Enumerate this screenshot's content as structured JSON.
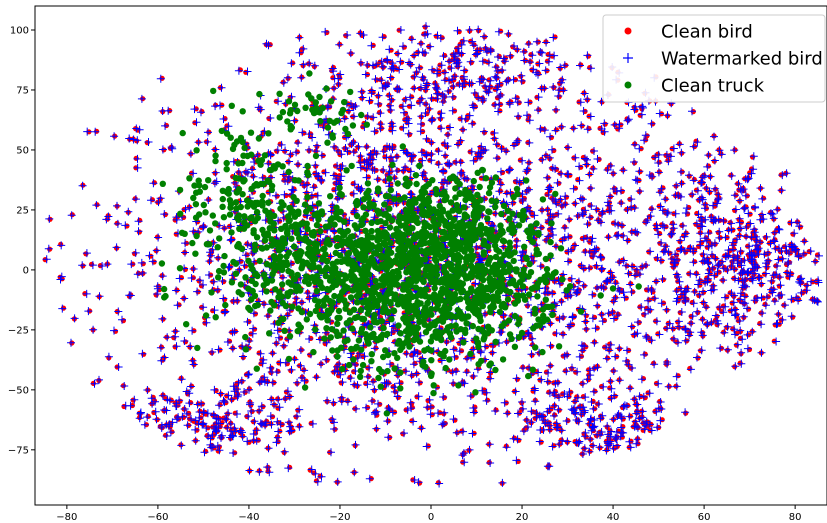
{
  "chart_data": {
    "type": "scatter",
    "title": "",
    "xlabel": "",
    "ylabel": "",
    "xlim": [
      -87,
      87
    ],
    "ylim": [
      -98,
      110
    ],
    "grid": false,
    "legend_position": "top-right",
    "xticks": [
      -80,
      -60,
      -40,
      -20,
      0,
      20,
      40,
      60,
      80
    ],
    "yticks": [
      -75,
      -50,
      -25,
      0,
      25,
      50,
      75,
      100
    ],
    "series": [
      {
        "name": "Clean bird",
        "marker": "circle",
        "color": "#ff0000",
        "cloud": [
          {
            "cx": -5,
            "cy": 5,
            "sx": 34,
            "sy": 42,
            "n": 1900
          },
          {
            "cx": 60,
            "cy": 5,
            "sx": 12,
            "sy": 28,
            "n": 260
          },
          {
            "cx": 38,
            "cy": -62,
            "sx": 8,
            "sy": 10,
            "n": 130
          },
          {
            "cx": 5,
            "cy": 85,
            "sx": 14,
            "sy": 10,
            "n": 180
          },
          {
            "cx": -50,
            "cy": -65,
            "sx": 12,
            "sy": 8,
            "n": 120
          },
          {
            "cx": 72,
            "cy": 0,
            "sx": 8,
            "sy": 10,
            "n": 120
          }
        ]
      },
      {
        "name": "Watermarked bird",
        "marker": "plus",
        "color": "#0000ff",
        "overlays": "Clean bird"
      },
      {
        "name": "Clean truck",
        "marker": "circle",
        "color": "#008000",
        "cloud": [
          {
            "cx": -20,
            "cy": 5,
            "sx": 14,
            "sy": 14,
            "n": 650
          },
          {
            "cx": 5,
            "cy": 15,
            "sx": 9,
            "sy": 12,
            "n": 450
          },
          {
            "cx": -5,
            "cy": -20,
            "sx": 14,
            "sy": 12,
            "n": 380
          },
          {
            "cx": -40,
            "cy": 35,
            "sx": 7,
            "sy": 14,
            "n": 130
          },
          {
            "cx": 10,
            "cy": -10,
            "sx": 10,
            "sy": 9,
            "n": 220
          },
          {
            "cx": -25,
            "cy": 65,
            "sx": 6,
            "sy": 6,
            "n": 40
          }
        ]
      }
    ]
  }
}
